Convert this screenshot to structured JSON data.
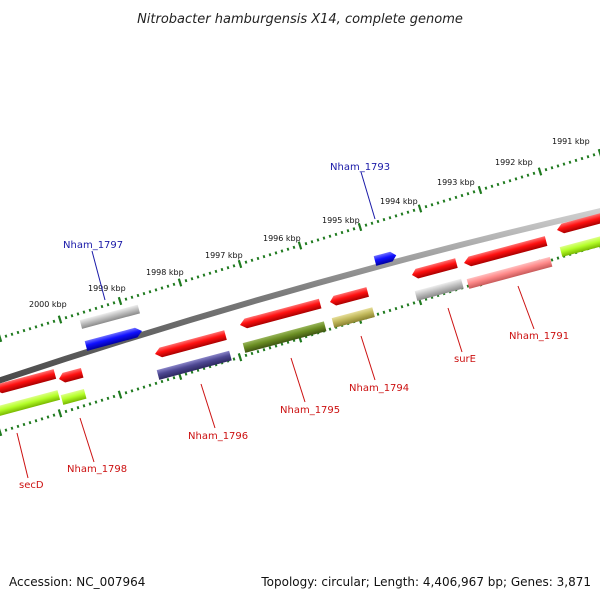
{
  "title": "Nitrobacter hamburgensis X14, complete genome",
  "footer": {
    "accession": "Accession: NC_007964",
    "summary": "Topology: circular; Length: 4,406,967 bp; Genes: 3,871"
  },
  "colors": {
    "backbone": "#808080",
    "tick": "#1f7a1f",
    "label_forward": "#1a1aa8",
    "label_reverse": "#cc1111"
  },
  "ticks": [
    {
      "label": "2000 kbp"
    },
    {
      "label": "1999 kbp"
    },
    {
      "label": "1998 kbp"
    },
    {
      "label": "1997 kbp"
    },
    {
      "label": "1996 kbp"
    },
    {
      "label": "1995 kbp"
    },
    {
      "label": "1994 kbp"
    },
    {
      "label": "1993 kbp"
    },
    {
      "label": "1992 kbp"
    },
    {
      "label": "1991 kbp"
    }
  ],
  "gene_labels": [
    {
      "label": "Nham_1797",
      "strand": "forward"
    },
    {
      "label": "Nham_1793",
      "strand": "forward"
    },
    {
      "label": "secD",
      "strand": "reverse"
    },
    {
      "label": "Nham_1798",
      "strand": "reverse"
    },
    {
      "label": "Nham_1796",
      "strand": "reverse"
    },
    {
      "label": "Nham_1795",
      "strand": "reverse"
    },
    {
      "label": "Nham_1794",
      "strand": "reverse"
    },
    {
      "label": "surE",
      "strand": "reverse"
    },
    {
      "label": "Nham_1791",
      "strand": "reverse"
    }
  ]
}
